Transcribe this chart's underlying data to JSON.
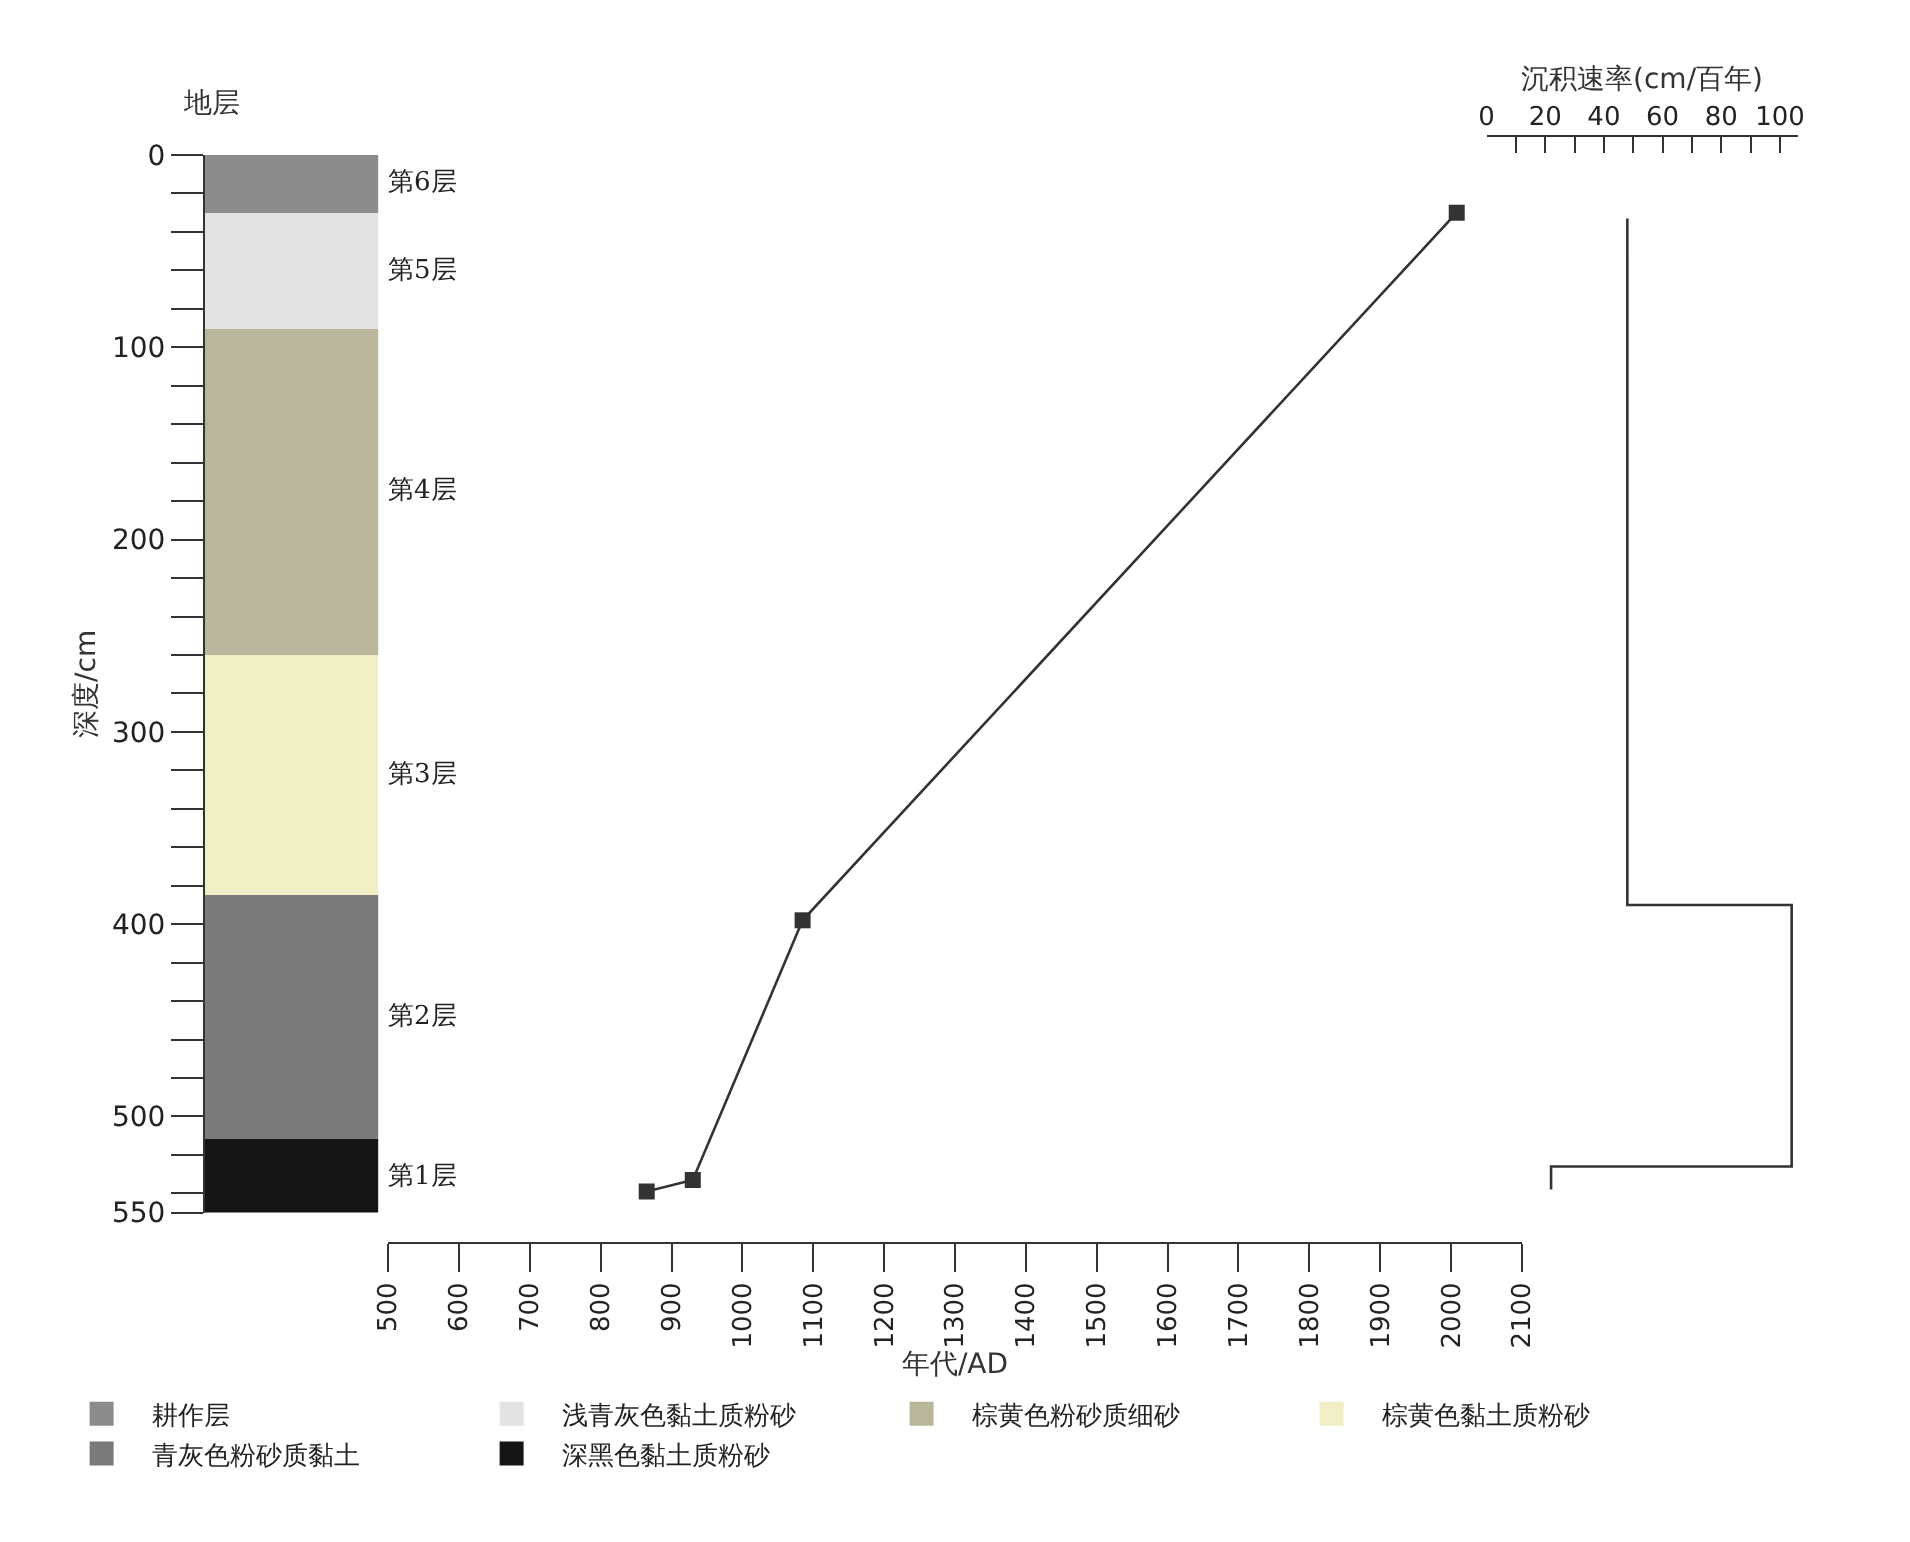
{
  "chart_data": [
    {
      "type": "bar",
      "title": "地层",
      "ylabel": "深度/cm",
      "stacked": true,
      "categories": [
        null
      ],
      "legend": "bottom",
      "tick_labels": "y",
      "ylim": [
        550,
        0
      ],
      "yticks": [
        0,
        {
          "value": 20,
          "label": null
        },
        {
          "value": 40,
          "label": null
        },
        {
          "value": 60,
          "label": null
        },
        {
          "value": 80,
          "label": null
        },
        100,
        {
          "value": 120,
          "label": null
        },
        {
          "value": 140,
          "label": null
        },
        {
          "value": 160,
          "label": null
        },
        {
          "value": 180,
          "label": null
        },
        200,
        {
          "value": 220,
          "label": null
        },
        {
          "value": 240,
          "label": null
        },
        {
          "value": 260,
          "label": null
        },
        {
          "value": 280,
          "label": null
        },
        300,
        {
          "value": 320,
          "label": null
        },
        {
          "value": 340,
          "label": null
        },
        {
          "value": 360,
          "label": null
        },
        {
          "value": 380,
          "label": null
        },
        400,
        {
          "value": 420,
          "label": null
        },
        {
          "value": 440,
          "label": null
        },
        {
          "value": 460,
          "label": null
        },
        {
          "value": 480,
          "label": null
        },
        500,
        {
          "value": 520,
          "label": null
        },
        {
          "value": 540,
          "label": null
        },
        550
      ],
      "series": [
        {
          "name": "耕作层",
          "color": "#8c8c8c",
          "values": [
            30
          ]
        },
        {
          "name": "浅青灰色黏土质粉砂",
          "color": "#e3e3e3",
          "values": [
            60
          ]
        },
        {
          "name": "棕黄色粉砂质细砂",
          "color": "#b8b79b",
          "values": [
            170
          ]
        },
        {
          "name": "棕黄色黏土质粉砂",
          "color": "#f0eec4",
          "values": [
            125
          ]
        },
        {
          "name": "青灰色粉砂质黏土",
          "color": "#7a7a7a",
          "values": [
            127
          ]
        },
        {
          "name": "深黑色黏土质粉砂",
          "color": "#151515",
          "values": [
            38
          ]
        }
      ],
      "annotations": [
        "第6层",
        "第5层",
        "第4层",
        "第3层",
        "第2层",
        "第1层"
      ]
    },
    {
      "type": "line",
      "xlabel": "年代/AD",
      "marker": "square",
      "tick_labels": "x",
      "xlim": [
        500,
        2100
      ],
      "xticks": [
        500,
        600,
        700,
        800,
        900,
        1000,
        1100,
        1200,
        1300,
        1400,
        1500,
        1600,
        1700,
        1800,
        1900,
        2000,
        2100
      ],
      "ylim": [
        550,
        0
      ],
      "series": [
        {
          "color": "#333333",
          "x": [
            865,
            930,
            1085,
            2008
          ],
          "values": [
            539,
            533,
            398,
            30
          ]
        }
      ]
    },
    {
      "type": "line",
      "xlabel": "沉积速率(cm/百年)",
      "tick_labels": "x",
      "xlim": [
        0,
        106
      ],
      "xticks": [
        0,
        {
          "value": 10,
          "label": null
        },
        20,
        {
          "value": 30,
          "label": null
        },
        40,
        {
          "value": 50,
          "label": null
        },
        60,
        {
          "value": 70,
          "label": null
        },
        80,
        {
          "value": 90,
          "label": null
        },
        100
      ],
      "ylim": [
        550,
        0
      ],
      "series": [
        {
          "color": "#333333",
          "x": [
            48,
            48,
            104,
            104,
            22,
            22
          ],
          "values": [
            33,
            390,
            390,
            526,
            526,
            538
          ]
        }
      ]
    }
  ]
}
